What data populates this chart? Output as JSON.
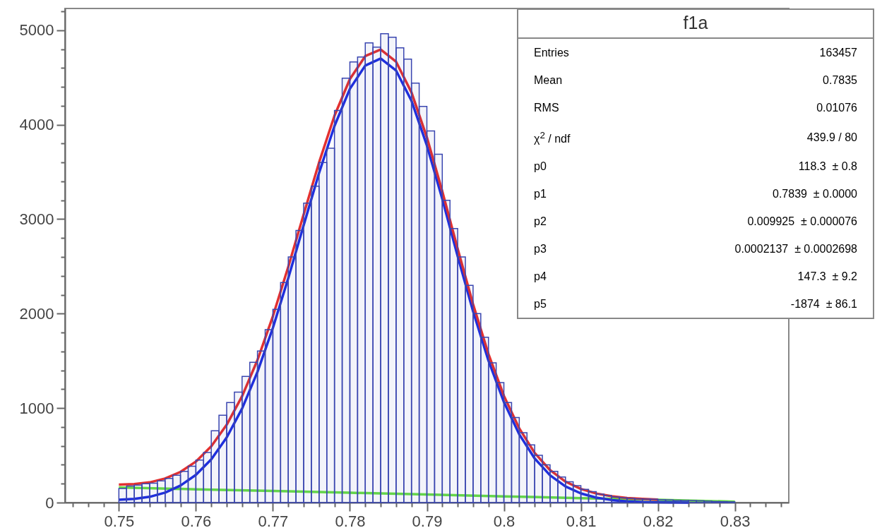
{
  "chart_data": {
    "type": "histogram",
    "title": "f1a",
    "color": "#3a46b0",
    "bins": [
      0.75,
      0.751,
      0.752,
      0.753,
      0.754,
      0.755,
      0.756,
      0.757,
      0.758,
      0.759,
      0.76,
      0.761,
      0.762,
      0.763,
      0.764,
      0.765,
      0.766,
      0.767,
      0.768,
      0.769,
      0.77,
      0.771,
      0.772,
      0.773,
      0.774,
      0.775,
      0.776,
      0.777,
      0.778,
      0.779,
      0.78,
      0.781,
      0.782,
      0.783,
      0.784,
      0.785,
      0.786,
      0.787,
      0.788,
      0.789,
      0.79,
      0.791,
      0.792,
      0.793,
      0.794,
      0.795,
      0.796,
      0.797,
      0.798,
      0.799,
      0.8,
      0.801,
      0.802,
      0.803,
      0.804,
      0.805,
      0.806,
      0.807,
      0.808,
      0.809,
      0.81,
      0.811,
      0.812,
      0.813,
      0.814,
      0.815,
      0.816,
      0.817,
      0.818,
      0.819,
      0.82,
      0.821,
      0.822,
      0.823,
      0.824,
      0.825,
      0.826,
      0.827,
      0.828,
      0.829,
      0.83
    ],
    "values": [
      150,
      175,
      185,
      200,
      205,
      230,
      255,
      290,
      330,
      385,
      450,
      530,
      760,
      925,
      1060,
      1170,
      1335,
      1485,
      1604,
      1830,
      2045,
      2330,
      2600,
      2880,
      3170,
      3350,
      3600,
      3750,
      4150,
      4493,
      4664,
      4716,
      4866,
      4821,
      4963,
      4925,
      4813,
      4694,
      4440,
      4194,
      3933,
      3687,
      3200,
      2900,
      2600,
      2300,
      2000,
      1750,
      1480,
      1270,
      1060,
      900,
      740,
      610,
      500,
      400,
      330,
      270,
      220,
      180,
      140,
      115,
      90,
      75,
      60,
      50,
      45,
      40,
      38,
      35,
      30,
      28,
      25,
      22,
      20,
      18,
      15,
      12,
      10,
      8
    ],
    "series": [
      {
        "type": "line",
        "color": "#66dd44",
        "x": [
          0.75,
          0.76,
          0.77,
          0.78,
          0.79,
          0.8,
          0.81,
          0.82,
          0.83
        ],
        "values": [
          160,
          141,
          123,
          104,
          85,
          66,
          47,
          29,
          10
        ]
      },
      {
        "type": "line",
        "color": "#1e2ee0",
        "x": [
          0.75,
          0.752,
          0.754,
          0.756,
          0.758,
          0.76,
          0.762,
          0.764,
          0.766,
          0.768,
          0.77,
          0.772,
          0.774,
          0.776,
          0.778,
          0.78,
          0.782,
          0.784,
          0.786,
          0.788,
          0.79,
          0.792,
          0.794,
          0.796,
          0.798,
          0.8,
          0.802,
          0.804,
          0.806,
          0.808,
          0.81,
          0.812,
          0.814,
          0.816,
          0.818,
          0.82,
          0.824
        ],
        "values": [
          30,
          40,
          61,
          106,
          180,
          293,
          458,
          689,
          995,
          1383,
          1849,
          2376,
          2936,
          3489,
          3986,
          4379,
          4626,
          4700,
          4573,
          4253,
          3781,
          3214,
          2608,
          2025,
          1502,
          1065,
          722,
          467,
          289,
          171,
          97,
          52,
          27,
          13,
          6,
          3,
          0
        ]
      },
      {
        "type": "line",
        "color": "#e23030",
        "x": [
          0.75,
          0.752,
          0.754,
          0.756,
          0.758,
          0.76,
          0.762,
          0.764,
          0.766,
          0.768,
          0.77,
          0.772,
          0.774,
          0.776,
          0.778,
          0.78,
          0.782,
          0.784,
          0.786,
          0.788,
          0.79,
          0.792,
          0.794,
          0.796,
          0.798,
          0.8,
          0.802,
          0.804,
          0.806,
          0.808,
          0.81,
          0.812,
          0.814,
          0.816,
          0.818,
          0.82
        ],
        "values": [
          190,
          196,
          214,
          255,
          325,
          434,
          596,
          823,
          1125,
          1509,
          1972,
          2495,
          3051,
          3600,
          4094,
          4483,
          4726,
          4796,
          4666,
          4342,
          3866,
          3295,
          2686,
          2099,
          1572,
          1131,
          785,
          526,
          344,
          222,
          145,
          96,
          67,
          49,
          39,
          32
        ]
      }
    ],
    "xlim": [
      0.743,
      0.837
    ],
    "xticks": [
      {
        "value": 0.744,
        "label": null
      },
      {
        "value": 0.746,
        "label": null
      },
      {
        "value": 0.748,
        "label": null
      },
      0.75,
      {
        "value": 0.752,
        "label": null
      },
      {
        "value": 0.754,
        "label": null
      },
      {
        "value": 0.756,
        "label": null
      },
      {
        "value": 0.758,
        "label": null
      },
      0.76,
      {
        "value": 0.762,
        "label": null
      },
      {
        "value": 0.764,
        "label": null
      },
      {
        "value": 0.766,
        "label": null
      },
      {
        "value": 0.768,
        "label": null
      },
      0.77,
      {
        "value": 0.772,
        "label": null
      },
      {
        "value": 0.774,
        "label": null
      },
      {
        "value": 0.776,
        "label": null
      },
      {
        "value": 0.778,
        "label": null
      },
      0.78,
      {
        "value": 0.782,
        "label": null
      },
      {
        "value": 0.784,
        "label": null
      },
      {
        "value": 0.786,
        "label": null
      },
      {
        "value": 0.788,
        "label": null
      },
      0.79,
      {
        "value": 0.792,
        "label": null
      },
      {
        "value": 0.794,
        "label": null
      },
      {
        "value": 0.796,
        "label": null
      },
      {
        "value": 0.798,
        "label": null
      },
      0.8,
      {
        "value": 0.802,
        "label": null
      },
      {
        "value": 0.804,
        "label": null
      },
      {
        "value": 0.806,
        "label": null
      },
      {
        "value": 0.808,
        "label": null
      },
      0.81,
      {
        "value": 0.812,
        "label": null
      },
      {
        "value": 0.814,
        "label": null
      },
      {
        "value": 0.816,
        "label": null
      },
      {
        "value": 0.818,
        "label": null
      },
      0.82,
      {
        "value": 0.822,
        "label": null
      },
      {
        "value": 0.824,
        "label": null
      },
      {
        "value": 0.826,
        "label": null
      },
      {
        "value": 0.828,
        "label": null
      },
      0.83,
      {
        "value": 0.832,
        "label": null
      },
      {
        "value": 0.834,
        "label": null
      },
      {
        "value": 0.836,
        "label": null
      }
    ],
    "ylim": [
      0,
      5230
    ],
    "yticks": [
      0,
      {
        "value": 200,
        "label": null
      },
      {
        "value": 400,
        "label": null
      },
      {
        "value": 600,
        "label": null
      },
      {
        "value": 800,
        "label": null
      },
      1000,
      {
        "value": 1200,
        "label": null
      },
      {
        "value": 1400,
        "label": null
      },
      {
        "value": 1600,
        "label": null
      },
      {
        "value": 1800,
        "label": null
      },
      2000,
      {
        "value": 2200,
        "label": null
      },
      {
        "value": 2400,
        "label": null
      },
      {
        "value": 2600,
        "label": null
      },
      {
        "value": 2800,
        "label": null
      },
      3000,
      {
        "value": 3200,
        "label": null
      },
      {
        "value": 3400,
        "label": null
      },
      {
        "value": 3600,
        "label": null
      },
      {
        "value": 3800,
        "label": null
      },
      4000,
      {
        "value": 4200,
        "label": null
      },
      {
        "value": 4400,
        "label": null
      },
      {
        "value": 4600,
        "label": null
      },
      {
        "value": 4800,
        "label": null
      },
      5000,
      {
        "value": 5200,
        "label": null
      }
    ],
    "annotations": [
      "Entries",
      "163457",
      "Mean",
      "0.7835",
      "RMS",
      "0.01076",
      "χ$^{2}$ / ndf",
      "439.9 / 80",
      "p0",
      "118.3  ± 0.8",
      "p1",
      "0.7839  ± 0.0000",
      "p2",
      "0.009925  ± 0.000076",
      "p3",
      "0.0002137  ± 0.0002698",
      "p4",
      "147.3  ± 9.2",
      "p5",
      "-1874  ± 86.1"
    ]
  }
}
